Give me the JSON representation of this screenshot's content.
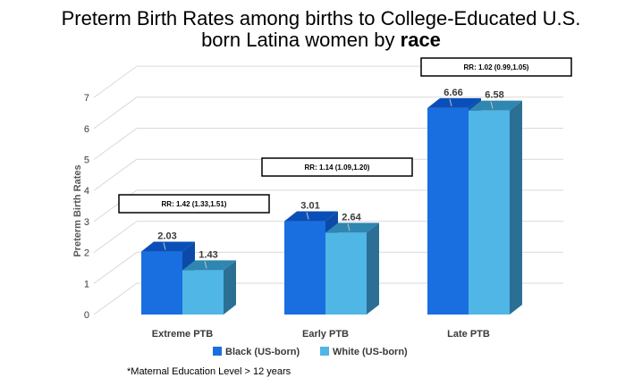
{
  "title_line1": "Preterm Birth Rates among births to College-Educated U.S.",
  "title_line2_prefix": "born Latina women by ",
  "title_line2_bold": "race",
  "footnote": "*Maternal Education Level > 12 years",
  "chart_data": {
    "type": "bar",
    "categories": [
      "Extreme PTB",
      "Early PTB",
      "Late PTB"
    ],
    "series": [
      {
        "name": "Black (US-born)",
        "values": [
          2.03,
          3.01,
          6.66
        ]
      },
      {
        "name": "White (US-born)",
        "values": [
          1.43,
          2.64,
          6.58
        ]
      }
    ],
    "data_labels": [
      [
        "2.03",
        "3.01",
        "6.66"
      ],
      [
        "1.43",
        "2.64",
        "6.58"
      ]
    ],
    "annotations": [
      "RR: 1.42 (1.33,1.51)",
      "RR: 1.14 (1.09,1.20)",
      "RR: 1.02 (0.99,1.05)"
    ],
    "ylabel": "Preterm Birth Rates",
    "xlabel": "",
    "ylim": [
      0,
      7
    ],
    "yticks": [
      0,
      1,
      2,
      3,
      4,
      5,
      6,
      7
    ],
    "grid": true,
    "legend_position": "bottom",
    "colors": {
      "black_front": "#1a6fe0",
      "black_top": "#0a4fb8",
      "black_side": "#0b4aa8",
      "white_front": "#4fb6e6",
      "white_top": "#2f86b0",
      "white_side": "#2b7094",
      "grid": "#d9d9d9",
      "text": "#3a3a3a"
    }
  }
}
